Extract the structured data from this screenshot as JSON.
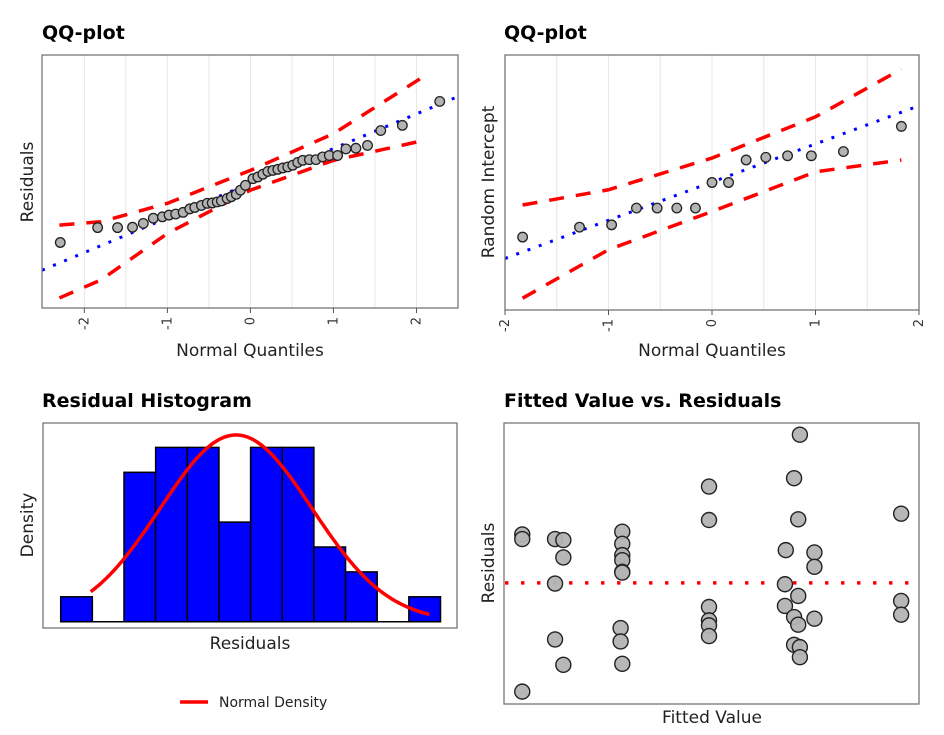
{
  "colors": {
    "points_fill": "#b3b3b3",
    "points_stroke": "#222222",
    "qq_line": "#0000ff",
    "band": "#ff0000",
    "bars": "#0000ff",
    "density": "#ff0000",
    "zero_line": "#ff0000",
    "grid": "#e6e6e6"
  },
  "chart_data": [
    {
      "type": "scatter",
      "title": "QQ-plot",
      "xlabel": "Normal Quantiles",
      "ylabel": "Residuals",
      "xlim": [
        -2.51,
        2.5
      ],
      "ylim": [
        -3.6,
        3.7
      ],
      "xticks": [
        "-2",
        "-1",
        "0",
        "1",
        "2"
      ],
      "xtick_values": [
        -2,
        -1,
        0,
        1,
        2
      ],
      "grid": "vertical",
      "points": {
        "x": [
          -2.29,
          -1.84,
          -1.6,
          -1.42,
          -1.29,
          -1.17,
          -1.06,
          -0.98,
          -0.9,
          -0.81,
          -0.73,
          -0.67,
          -0.59,
          -0.52,
          -0.46,
          -0.4,
          -0.35,
          -0.28,
          -0.23,
          -0.17,
          -0.12,
          -0.06,
          0.03,
          0.09,
          0.15,
          0.21,
          0.27,
          0.33,
          0.39,
          0.45,
          0.51,
          0.57,
          0.63,
          0.71,
          0.79,
          0.87,
          0.95,
          1.05,
          1.15,
          1.27,
          1.41,
          1.57,
          1.83,
          2.28
        ],
        "y": [
          -1.71,
          -1.28,
          -1.28,
          -1.27,
          -1.16,
          -1.01,
          -0.97,
          -0.92,
          -0.89,
          -0.84,
          -0.74,
          -0.7,
          -0.64,
          -0.58,
          -0.57,
          -0.54,
          -0.51,
          -0.44,
          -0.39,
          -0.32,
          -0.2,
          -0.06,
          0.13,
          0.18,
          0.26,
          0.34,
          0.37,
          0.4,
          0.44,
          0.47,
          0.52,
          0.6,
          0.66,
          0.68,
          0.68,
          0.76,
          0.8,
          0.8,
          0.99,
          1.01,
          1.09,
          1.52,
          1.67,
          2.36
        ]
      },
      "reference_line": {
        "style": "dotted",
        "slope": 1,
        "intercept": 0
      },
      "band": {
        "style": "dashed",
        "x": [
          -2.3,
          -1.8,
          -1.0,
          0,
          1,
          2.1
        ],
        "upper": [
          -1.21,
          -1.11,
          -0.58,
          0.37,
          1.43,
          3.1
        ],
        "lower": [
          -3.31,
          -2.79,
          -1.45,
          -0.2,
          0.66,
          1.24
        ]
      }
    },
    {
      "type": "scatter",
      "title": "QQ-plot",
      "xlabel": "Normal Quantiles",
      "ylabel": "Random Intercept",
      "xlim": [
        -2,
        2
      ],
      "ylim": [
        -3.35,
        3.33
      ],
      "xticks": [
        "-2",
        "-1",
        "0",
        "1",
        "2"
      ],
      "xtick_values": [
        -2,
        -1,
        0,
        1,
        2
      ],
      "grid": "vertical",
      "points": {
        "x": [
          -1.83,
          -1.28,
          -0.97,
          -0.73,
          -0.53,
          -0.34,
          -0.16,
          0.0,
          0.16,
          0.33,
          0.52,
          0.73,
          0.96,
          1.27,
          1.83
        ],
        "y": [
          -1.44,
          -1.18,
          -1.12,
          -0.68,
          -0.68,
          -0.68,
          -0.68,
          -0.01,
          -0.01,
          0.58,
          0.65,
          0.69,
          0.69,
          0.8,
          1.46
        ]
      },
      "reference_line": {
        "style": "dotted",
        "slope": 1,
        "intercept": 0
      },
      "band": {
        "style": "dashed",
        "x": [
          -1.83,
          -1,
          0,
          1,
          1.83
        ],
        "upper": [
          -0.6,
          -0.2,
          0.63,
          1.71,
          2.96
        ],
        "lower": [
          -3.04,
          -1.77,
          -0.77,
          0.27,
          0.58
        ]
      }
    },
    {
      "type": "bar",
      "title": "Residual Histogram",
      "xlabel": "Residuals",
      "ylabel": "Density",
      "values": [
        1,
        0,
        6,
        7,
        7,
        4,
        7,
        7,
        3,
        2,
        0,
        1
      ],
      "ylim": [
        0,
        7.9
      ],
      "density_curve": {
        "name": "Normal Density",
        "mean_bin": 5.54,
        "sd_bins": 2.4,
        "peak": 7.5,
        "from_bin": 0.95,
        "to_bin": 11.66
      },
      "legend": {
        "position": "bottom",
        "entries": [
          "Normal Density"
        ]
      }
    },
    {
      "type": "scatter",
      "title": "Fitted Value vs. Residuals",
      "xlabel": "Fitted Value",
      "ylabel": "Residuals",
      "xlim": [
        0,
        10
      ],
      "ylim": [
        -3.62,
        4.78
      ],
      "reference_line": {
        "style": "dotted",
        "y": 0
      },
      "points": {
        "x": [
          0.44,
          0.44,
          0.44,
          1.23,
          1.23,
          1.23,
          1.43,
          1.43,
          1.43,
          2.85,
          2.85,
          2.85,
          2.85,
          2.85,
          2.85,
          2.85,
          2.81,
          2.81,
          4.94,
          4.94,
          4.94,
          4.94,
          4.94,
          4.94,
          7.13,
          6.99,
          7.09,
          6.79,
          7.48,
          7.48,
          6.77,
          7.09,
          6.77,
          6.99,
          7.09,
          7.48,
          6.99,
          7.13,
          7.13,
          9.57,
          9.57,
          9.57
        ],
        "y": [
          1.45,
          1.31,
          -3.25,
          1.31,
          -0.02,
          -1.69,
          1.28,
          0.76,
          -2.45,
          1.53,
          1.17,
          0.83,
          0.68,
          0.33,
          0.31,
          -2.42,
          -1.35,
          -1.75,
          2.88,
          1.88,
          -0.72,
          -1.12,
          -1.27,
          -1.59,
          4.43,
          3.13,
          1.9,
          0.98,
          0.91,
          0.48,
          -0.04,
          -0.39,
          -0.69,
          -1.02,
          -1.25,
          -1.07,
          -1.85,
          -1.92,
          -2.22,
          2.07,
          -0.54,
          -0.95
        ]
      }
    }
  ]
}
